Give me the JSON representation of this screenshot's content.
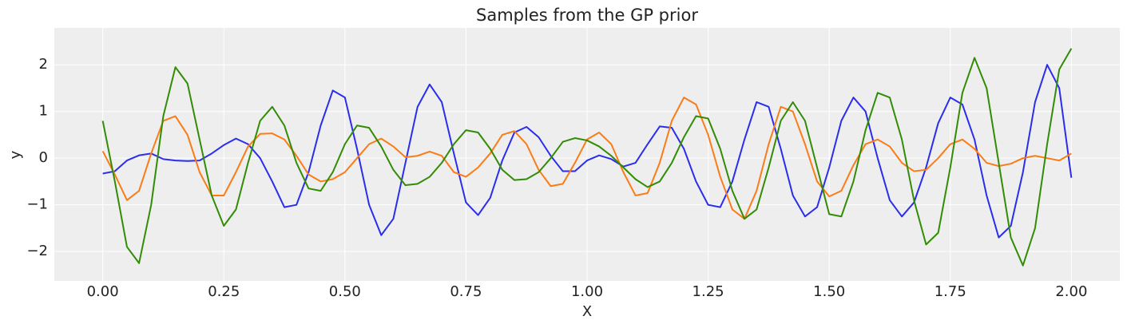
{
  "chart_data": {
    "type": "line",
    "title": "Samples from the GP prior",
    "xlabel": "X",
    "ylabel": "y",
    "x": [
      0,
      0.025,
      0.05,
      0.075,
      0.1,
      0.125,
      0.15,
      0.175,
      0.2,
      0.225,
      0.25,
      0.275,
      0.3,
      0.325,
      0.35,
      0.375,
      0.4,
      0.425,
      0.45,
      0.475,
      0.5,
      0.525,
      0.55,
      0.575,
      0.6,
      0.625,
      0.65,
      0.675,
      0.7,
      0.725,
      0.75,
      0.775,
      0.8,
      0.825,
      0.85,
      0.875,
      0.9,
      0.925,
      0.95,
      0.975,
      1.0,
      1.025,
      1.05,
      1.075,
      1.1,
      1.125,
      1.15,
      1.175,
      1.2,
      1.225,
      1.25,
      1.275,
      1.3,
      1.325,
      1.35,
      1.375,
      1.4,
      1.425,
      1.45,
      1.475,
      1.5,
      1.525,
      1.55,
      1.575,
      1.6,
      1.625,
      1.65,
      1.675,
      1.7,
      1.725,
      1.75,
      1.775,
      1.8,
      1.825,
      1.85,
      1.875,
      1.9,
      1.925,
      1.95,
      1.975,
      2.0
    ],
    "series": [
      {
        "color": "#2a2eec",
        "values": [
          -0.33,
          -0.28,
          -0.05,
          0.06,
          0.1,
          -0.02,
          -0.05,
          -0.06,
          -0.05,
          0.1,
          0.28,
          0.42,
          0.3,
          0.0,
          -0.5,
          -1.05,
          -1.0,
          -0.3,
          0.7,
          1.45,
          1.3,
          0.2,
          -1.0,
          -1.65,
          -1.3,
          -0.1,
          1.1,
          1.58,
          1.2,
          0.1,
          -0.95,
          -1.22,
          -0.85,
          -0.05,
          0.55,
          0.67,
          0.45,
          0.05,
          -0.28,
          -0.28,
          -0.05,
          0.06,
          -0.02,
          -0.18,
          -0.1,
          0.3,
          0.68,
          0.65,
          0.2,
          -0.5,
          -1.0,
          -1.05,
          -0.5,
          0.4,
          1.2,
          1.1,
          0.2,
          -0.8,
          -1.25,
          -1.05,
          -0.2,
          0.8,
          1.3,
          1.0,
          0.0,
          -0.9,
          -1.25,
          -0.95,
          -0.2,
          0.75,
          1.3,
          1.15,
          0.4,
          -0.8,
          -1.7,
          -1.45,
          -0.3,
          1.2,
          2.0,
          1.5,
          -0.42
        ]
      },
      {
        "color": "#fa7c17",
        "values": [
          0.15,
          -0.35,
          -0.9,
          -0.7,
          0.1,
          0.8,
          0.9,
          0.5,
          -0.3,
          -0.8,
          -0.8,
          -0.3,
          0.25,
          0.52,
          0.53,
          0.4,
          0.05,
          -0.35,
          -0.5,
          -0.45,
          -0.3,
          0.0,
          0.3,
          0.42,
          0.25,
          0.02,
          0.05,
          0.14,
          0.05,
          -0.3,
          -0.4,
          -0.2,
          0.1,
          0.5,
          0.58,
          0.3,
          -0.25,
          -0.6,
          -0.55,
          -0.1,
          0.4,
          0.55,
          0.3,
          -0.3,
          -0.8,
          -0.75,
          -0.1,
          0.8,
          1.3,
          1.15,
          0.5,
          -0.4,
          -1.1,
          -1.3,
          -0.7,
          0.3,
          1.1,
          1.0,
          0.3,
          -0.5,
          -0.82,
          -0.7,
          -0.15,
          0.3,
          0.4,
          0.25,
          -0.1,
          -0.28,
          -0.25,
          0.0,
          0.3,
          0.4,
          0.2,
          -0.1,
          -0.17,
          -0.12,
          0.0,
          0.05,
          0.0,
          -0.05,
          0.1
        ]
      },
      {
        "color": "#328c06",
        "values": [
          0.8,
          -0.5,
          -1.9,
          -2.25,
          -1.0,
          0.9,
          1.95,
          1.6,
          0.4,
          -0.8,
          -1.45,
          -1.1,
          -0.1,
          0.8,
          1.1,
          0.7,
          -0.1,
          -0.65,
          -0.7,
          -0.3,
          0.3,
          0.7,
          0.65,
          0.25,
          -0.25,
          -0.58,
          -0.55,
          -0.4,
          -0.1,
          0.3,
          0.6,
          0.55,
          0.2,
          -0.25,
          -0.47,
          -0.45,
          -0.3,
          0.0,
          0.35,
          0.43,
          0.38,
          0.25,
          0.05,
          -0.2,
          -0.45,
          -0.62,
          -0.5,
          -0.1,
          0.45,
          0.9,
          0.85,
          0.2,
          -0.7,
          -1.3,
          -1.1,
          -0.2,
          0.8,
          1.2,
          0.8,
          -0.2,
          -1.2,
          -1.25,
          -0.5,
          0.6,
          1.4,
          1.3,
          0.4,
          -0.9,
          -1.85,
          -1.6,
          -0.2,
          1.4,
          2.15,
          1.5,
          -0.1,
          -1.7,
          -2.3,
          -1.5,
          0.3,
          1.9,
          2.35
        ]
      }
    ],
    "xlim": [
      -0.1,
      2.1
    ],
    "ylim": [
      -2.63,
      2.79
    ],
    "xticks": [
      {
        "value": 0,
        "label": "0.00"
      },
      {
        "value": 0.25,
        "label": "0.25"
      },
      {
        "value": 0.5,
        "label": "0.50"
      },
      {
        "value": 0.75,
        "label": "0.75"
      },
      {
        "value": 1,
        "label": "1.00"
      },
      {
        "value": 1.25,
        "label": "1.25"
      },
      {
        "value": 1.5,
        "label": "1.50"
      },
      {
        "value": 1.75,
        "label": "1.75"
      },
      {
        "value": 2,
        "label": "2.00"
      }
    ],
    "yticks": [
      {
        "value": -2,
        "label": "−2"
      },
      {
        "value": -1,
        "label": "−1"
      },
      0,
      1,
      2
    ],
    "grid": true
  }
}
